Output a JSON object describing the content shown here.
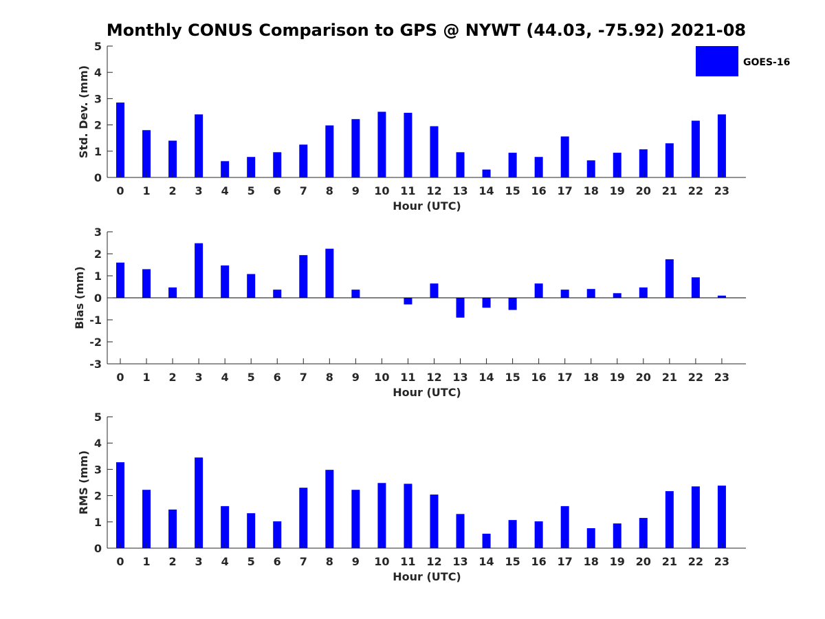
{
  "title": "Monthly CONUS Comparison to GPS @ NYWT (44.03, -75.92) 2021-08",
  "bar_color": "#0000ff",
  "chart_data": [
    {
      "type": "bar",
      "id": "std",
      "xlabel": "Hour (UTC)",
      "ylabel": "Std. Dev. (mm)",
      "ylim": [
        0,
        5
      ],
      "yticks": [
        0,
        1,
        2,
        3,
        4,
        5
      ],
      "categories": [
        "0",
        "1",
        "2",
        "3",
        "4",
        "5",
        "6",
        "7",
        "8",
        "9",
        "10",
        "11",
        "12",
        "13",
        "14",
        "15",
        "16",
        "17",
        "18",
        "19",
        "20",
        "21",
        "22",
        "23"
      ],
      "series": [
        {
          "name": "GOES-16",
          "values": [
            2.85,
            1.8,
            1.4,
            2.4,
            0.62,
            0.78,
            0.96,
            1.25,
            1.98,
            2.22,
            2.5,
            2.46,
            1.95,
            0.96,
            0.3,
            0.94,
            0.78,
            1.56,
            0.65,
            0.94,
            1.07,
            1.3,
            2.16,
            2.4
          ]
        }
      ],
      "legend": {
        "entries": [
          "GOES-16"
        ],
        "position": "top-right"
      }
    },
    {
      "type": "bar",
      "id": "bias",
      "xlabel": "Hour (UTC)",
      "ylabel": "Bias (mm)",
      "ylim": [
        -3,
        3
      ],
      "yticks": [
        -3,
        -2,
        -1,
        0,
        1,
        2,
        3
      ],
      "categories": [
        "0",
        "1",
        "2",
        "3",
        "4",
        "5",
        "6",
        "7",
        "8",
        "9",
        "10",
        "11",
        "12",
        "13",
        "14",
        "15",
        "16",
        "17",
        "18",
        "19",
        "20",
        "21",
        "22",
        "23"
      ],
      "series": [
        {
          "name": "GOES-16",
          "values": [
            1.6,
            1.3,
            0.47,
            2.48,
            1.47,
            1.08,
            0.37,
            1.94,
            2.23,
            0.37,
            0.0,
            -0.3,
            0.65,
            -0.9,
            -0.45,
            -0.55,
            0.65,
            0.37,
            0.4,
            0.21,
            0.47,
            1.75,
            0.93,
            0.1
          ]
        }
      ]
    },
    {
      "type": "bar",
      "id": "rms",
      "xlabel": "Hour (UTC)",
      "ylabel": "RMS (mm)",
      "ylim": [
        0,
        5
      ],
      "yticks": [
        0,
        1,
        2,
        3,
        4,
        5
      ],
      "categories": [
        "0",
        "1",
        "2",
        "3",
        "4",
        "5",
        "6",
        "7",
        "8",
        "9",
        "10",
        "11",
        "12",
        "13",
        "14",
        "15",
        "16",
        "17",
        "18",
        "19",
        "20",
        "21",
        "22",
        "23"
      ],
      "series": [
        {
          "name": "GOES-16",
          "values": [
            3.27,
            2.22,
            1.47,
            3.45,
            1.6,
            1.33,
            1.02,
            2.3,
            2.98,
            2.22,
            2.48,
            2.45,
            2.04,
            1.3,
            0.55,
            1.07,
            1.02,
            1.6,
            0.76,
            0.94,
            1.15,
            2.17,
            2.35,
            2.38
          ]
        }
      ]
    }
  ]
}
